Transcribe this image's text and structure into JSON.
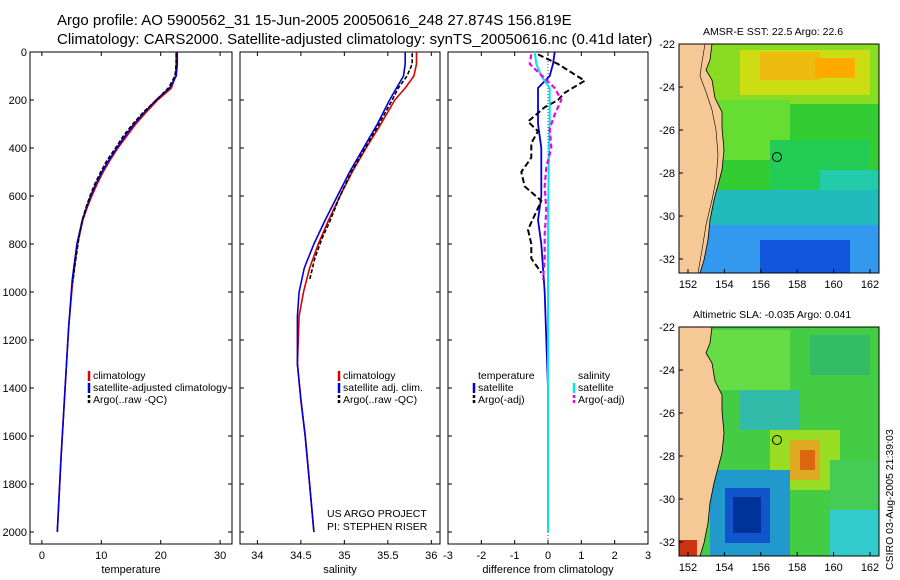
{
  "title": {
    "line1": "Argo profile: AO 5900562_31 15-Jun-2005 20050616_248 27.874S 156.819E",
    "line2": "Climatology: CARS2000. Satellite-adjusted climatology: synTS_20050616.nc (0.41d later)"
  },
  "credit": {
    "line1": "US ARGO PROJECT",
    "line2": "PI: STEPHEN RISER"
  },
  "stamp": "CSIRO 03-Aug-2005 21:39:03",
  "colors": {
    "climatology": "#e00000",
    "satellite": "#0000dd",
    "argo": "#000000",
    "satellite_salinity": "#00e5ee",
    "argo_salinity": "#ee00ee",
    "land": "#f5c896",
    "ocean_mid": "#33cc33"
  },
  "chart_data": [
    {
      "type": "line",
      "name": "temperature-profile",
      "xlabel": "temperature",
      "xlim": [
        -2,
        32
      ],
      "ylim": [
        2050,
        0
      ],
      "xticks": [
        0,
        10,
        20,
        30
      ],
      "yticks": [
        0,
        200,
        400,
        600,
        800,
        1000,
        1200,
        1400,
        1600,
        1800,
        2000
      ],
      "legend": [
        "climatology",
        "satellite-adjusted climatology",
        "Argo(..raw -QC)"
      ],
      "series": [
        {
          "name": "climatology",
          "x": [
            22.6,
            22.6,
            22.5,
            21.8,
            19.5,
            17.6,
            15.8,
            14.3,
            12.8,
            11.5,
            10.3,
            9.3,
            8.4,
            7.6,
            6.9,
            6.0,
            5.2,
            4.5,
            3.9,
            3.2,
            2.6
          ],
          "y": [
            0,
            50,
            100,
            150,
            200,
            250,
            300,
            350,
            400,
            450,
            500,
            550,
            600,
            650,
            700,
            800,
            950,
            1150,
            1400,
            1700,
            2000
          ]
        },
        {
          "name": "satellite-adjusted climatology",
          "x": [
            22.8,
            22.8,
            22.6,
            21.5,
            19.2,
            17.3,
            15.5,
            14.0,
            12.6,
            11.3,
            10.1,
            9.1,
            8.2,
            7.5,
            6.8,
            5.9,
            5.1,
            4.5,
            3.9,
            3.2,
            2.6
          ],
          "y": [
            0,
            50,
            100,
            150,
            200,
            250,
            300,
            350,
            400,
            450,
            500,
            550,
            600,
            650,
            700,
            800,
            950,
            1150,
            1400,
            1700,
            2000
          ]
        },
        {
          "name": "Argo(..raw -QC)",
          "x": [
            22.6,
            22.6,
            22.4,
            21.3,
            19.3,
            17.1,
            15.3,
            13.7,
            12.4,
            11.0,
            9.9,
            8.9,
            8.1,
            7.4,
            6.8,
            6.2,
            5.6,
            5.2
          ],
          "y": [
            5,
            50,
            100,
            150,
            200,
            250,
            300,
            350,
            400,
            450,
            500,
            550,
            600,
            650,
            700,
            780,
            880,
            960
          ]
        }
      ]
    },
    {
      "type": "line",
      "name": "salinity-profile",
      "xlabel": "salinity",
      "xlim": [
        33.8,
        36.1
      ],
      "ylim": [
        2050,
        0
      ],
      "xticks": [
        34,
        34.5,
        35,
        35.5,
        36
      ],
      "legend": [
        "climatology",
        "satellite adj. clim.",
        "Argo(..raw -QC)"
      ],
      "series": [
        {
          "name": "climatology",
          "x": [
            35.83,
            35.83,
            35.8,
            35.7,
            35.58,
            35.42,
            35.25,
            35.09,
            34.95,
            34.82,
            34.7,
            34.6,
            34.53,
            34.48,
            34.47,
            34.46,
            34.5,
            34.55,
            34.6,
            34.65
          ],
          "y": [
            0,
            50,
            100,
            150,
            200,
            300,
            400,
            500,
            600,
            700,
            800,
            900,
            1000,
            1100,
            1200,
            1300,
            1450,
            1600,
            1800,
            2000
          ]
        },
        {
          "name": "satellite adj. clim.",
          "x": [
            35.7,
            35.7,
            35.68,
            35.6,
            35.52,
            35.38,
            35.22,
            35.06,
            34.92,
            34.78,
            34.65,
            34.54,
            34.48,
            34.46,
            34.46,
            34.46,
            34.5,
            34.55,
            34.6,
            34.65
          ],
          "y": [
            0,
            50,
            100,
            150,
            200,
            300,
            400,
            500,
            600,
            700,
            800,
            900,
            1000,
            1100,
            1200,
            1300,
            1450,
            1600,
            1800,
            2000
          ]
        },
        {
          "name": "Argo(..raw -QC)",
          "x": [
            35.78,
            35.78,
            35.72,
            35.62,
            35.55,
            35.4,
            35.24,
            35.08,
            34.95,
            34.84,
            34.74,
            34.66,
            34.6
          ],
          "y": [
            5,
            50,
            100,
            150,
            200,
            300,
            400,
            500,
            600,
            700,
            780,
            860,
            950
          ]
        }
      ]
    },
    {
      "type": "line",
      "name": "difference-from-climatology",
      "xlabel": "difference from climatology",
      "xlim": [
        -3,
        3
      ],
      "ylim": [
        2050,
        0
      ],
      "xticks": [
        -3,
        -2,
        -1,
        0,
        1,
        2,
        3
      ],
      "legend_left": [
        "temperature",
        "satellite",
        "Argo(-adj)"
      ],
      "legend_right": [
        "salinity",
        "satellite",
        "Argo(-adj)"
      ],
      "series": [
        {
          "name": "temperature satellite",
          "x": [
            0.2,
            0.15,
            0.05,
            -0.3,
            -0.3,
            -0.3,
            -0.2,
            -0.2,
            -0.2,
            -0.3,
            -0.2,
            -0.15,
            -0.1,
            -0.05,
            0,
            0,
            0
          ],
          "y": [
            0,
            50,
            100,
            150,
            200,
            300,
            400,
            500,
            600,
            700,
            800,
            900,
            1000,
            1200,
            1400,
            1700,
            2000
          ]
        },
        {
          "name": "temperature Argo(-adj)",
          "x": [
            -0.3,
            0.3,
            1.1,
            0.5,
            0.3,
            -0.1,
            -0.6,
            -0.3,
            -0.5,
            -0.5,
            -0.8,
            -0.7,
            -0.2,
            -0.4,
            -0.6,
            -0.5,
            -0.5,
            -0.2
          ],
          "y": [
            10,
            50,
            120,
            170,
            200,
            230,
            290,
            330,
            380,
            440,
            500,
            560,
            620,
            680,
            740,
            800,
            860,
            920
          ]
        },
        {
          "name": "salinity satellite",
          "x": [
            -0.4,
            -0.35,
            -0.2,
            0.05,
            0.05,
            0.05,
            0.03,
            0.02,
            0.01,
            0,
            0,
            0,
            0
          ],
          "y": [
            0,
            50,
            100,
            150,
            200,
            300,
            400,
            500,
            600,
            800,
            1000,
            1500,
            2000
          ]
        },
        {
          "name": "salinity Argo(-adj)",
          "x": [
            -0.5,
            -0.55,
            0.2,
            0.4,
            0.2,
            0.05,
            0.1,
            -0.05,
            -0.1,
            -0.05,
            -0.1,
            -0.1,
            -0.15
          ],
          "y": [
            10,
            50,
            150,
            200,
            260,
            320,
            400,
            480,
            560,
            660,
            760,
            860,
            950
          ]
        }
      ]
    }
  ],
  "maps": [
    {
      "title": "AMSR-E SST: 22.5 Argo: 22.6",
      "yticks": [
        "-22",
        "-24",
        "-26",
        "-28",
        "-30",
        "-32"
      ],
      "xticks": [
        "152",
        "154",
        "156",
        "158",
        "160",
        "162"
      ]
    },
    {
      "title": "Altimetric SLA: -0.035 Argo: 0.041",
      "yticks": [
        "-22",
        "-24",
        "-26",
        "-28",
        "-30",
        "-32"
      ],
      "xticks": [
        "152",
        "154",
        "156",
        "158",
        "160",
        "162"
      ]
    }
  ]
}
